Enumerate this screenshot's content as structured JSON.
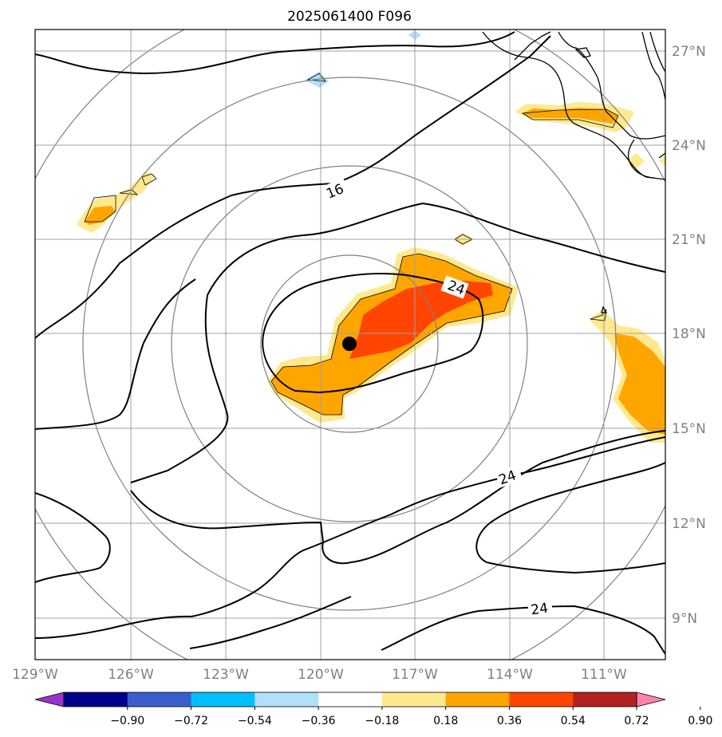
{
  "title": "2025061400 F096",
  "lat_labels": [
    "27°N",
    "24°N",
    "21°N",
    "18°N",
    "15°N",
    "12°N",
    "9°N"
  ],
  "lon_labels": [
    "129°W",
    "126°W",
    "123°W",
    "120°W",
    "117°W",
    "114°W",
    "111°W"
  ],
  "contour_labels": [
    "16",
    "24",
    "24",
    "24"
  ],
  "colorbar": {
    "ticks": [
      "−0.90",
      "−0.72",
      "−0.54",
      "−0.36",
      "−0.18",
      "0.18",
      "0.36",
      "0.54",
      "0.72",
      "0.90"
    ],
    "colors": [
      "#9932cc",
      "#00008b",
      "#3a5fcd",
      "#00bfff",
      "#b0e0fa",
      "#ffffff",
      "#ffe98f",
      "#ffa500",
      "#ff4500",
      "#b22222",
      "#ff82ab"
    ]
  },
  "storm_center": {
    "lat": 17.7,
    "lon": "119.1°W"
  }
}
